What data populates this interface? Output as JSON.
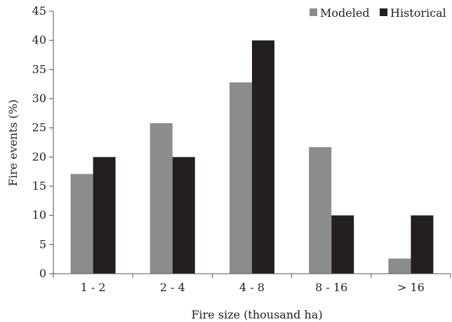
{
  "chart_data": {
    "type": "bar",
    "title": "",
    "xlabel": "Fire size (thousand ha)",
    "ylabel": "Fire events (%)",
    "categories": [
      "1 - 2",
      "2 - 4",
      "4 - 8",
      "8 - 16",
      "> 16"
    ],
    "series": [
      {
        "name": "Modeled",
        "values": [
          17.1,
          25.8,
          32.8,
          21.7,
          2.6
        ],
        "color": "#8c8c8c"
      },
      {
        "name": "Historical",
        "values": [
          20,
          20,
          40,
          10,
          10
        ],
        "color": "#231f20"
      }
    ],
    "ylim": [
      0,
      45
    ],
    "yticks": [
      0,
      5,
      10,
      15,
      20,
      25,
      30,
      35,
      40,
      45
    ],
    "grid": false,
    "legend": "top-right"
  }
}
